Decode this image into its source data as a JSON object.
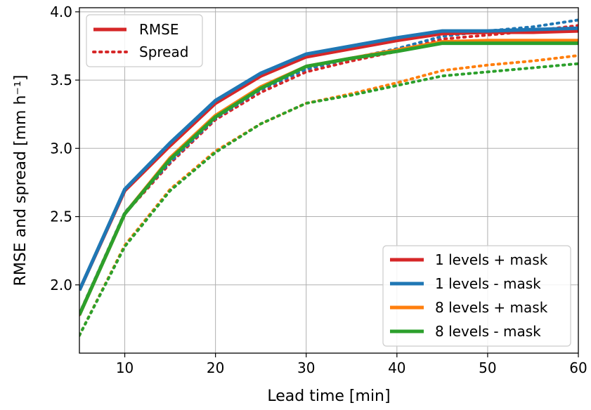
{
  "chart_data": {
    "type": "line",
    "xlabel": "Lead time [min]",
    "ylabel": "RMSE and spread [mm h⁻¹]",
    "xlim": [
      5,
      60
    ],
    "ylim": [
      1.5,
      4.03
    ],
    "xticks": [
      10,
      20,
      30,
      40,
      50,
      60
    ],
    "yticks": [
      2.0,
      2.5,
      3.0,
      3.5,
      4.0
    ],
    "ytick_labels": [
      "2.0",
      "2.5",
      "3.0",
      "3.5",
      "4.0"
    ],
    "grid": true,
    "x": [
      5,
      10,
      15,
      20,
      25,
      30,
      35,
      40,
      45,
      50,
      55,
      60
    ],
    "series": [
      {
        "name": "1 levels + mask",
        "color": "#d62728",
        "rmse": [
          1.96,
          2.69,
          3.02,
          3.33,
          3.53,
          3.67,
          3.73,
          3.79,
          3.84,
          3.85,
          3.85,
          3.86
        ],
        "spread": [
          1.78,
          2.52,
          2.89,
          3.21,
          3.41,
          3.56,
          3.64,
          3.71,
          3.8,
          3.83,
          3.86,
          3.9
        ]
      },
      {
        "name": "1 levels - mask",
        "color": "#1f77b4",
        "rmse": [
          1.96,
          2.7,
          3.04,
          3.35,
          3.55,
          3.69,
          3.75,
          3.81,
          3.86,
          3.86,
          3.87,
          3.88
        ],
        "spread": [
          1.79,
          2.53,
          2.9,
          3.22,
          3.43,
          3.58,
          3.66,
          3.73,
          3.82,
          3.86,
          3.89,
          3.94
        ]
      },
      {
        "name": "8 levels + mask",
        "color": "#ff7f0e",
        "rmse": [
          1.78,
          2.52,
          2.93,
          3.24,
          3.45,
          3.6,
          3.66,
          3.72,
          3.78,
          3.79,
          3.79,
          3.79
        ],
        "spread": [
          1.63,
          2.29,
          2.7,
          2.98,
          3.18,
          3.33,
          3.4,
          3.48,
          3.57,
          3.61,
          3.64,
          3.68
        ]
      },
      {
        "name": "8 levels - mask",
        "color": "#2ca02c",
        "rmse": [
          1.78,
          2.52,
          2.92,
          3.23,
          3.44,
          3.6,
          3.66,
          3.71,
          3.77,
          3.77,
          3.77,
          3.77
        ],
        "spread": [
          1.63,
          2.28,
          2.69,
          2.97,
          3.18,
          3.33,
          3.39,
          3.46,
          3.53,
          3.56,
          3.59,
          3.62
        ]
      }
    ],
    "style_legend": {
      "placement": "upper-left",
      "entries": [
        {
          "label": "RMSE",
          "style": "solid",
          "color": "#d62728"
        },
        {
          "label": "Spread",
          "style": "dotted",
          "color": "#d62728"
        }
      ]
    },
    "series_legend_placement": "lower-right"
  }
}
